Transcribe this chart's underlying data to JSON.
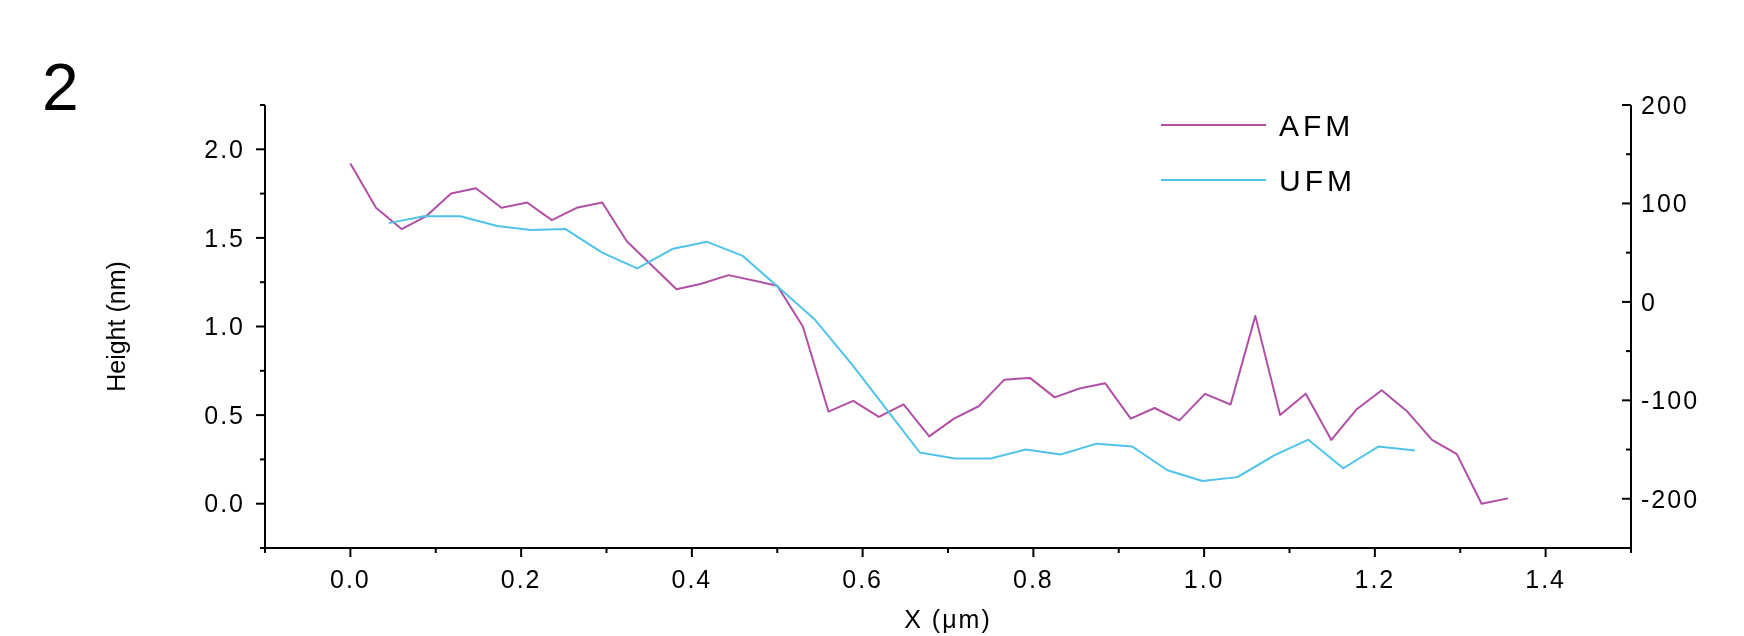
{
  "chart_data": {
    "type": "line",
    "title": "2",
    "xlabel": "X (μm)",
    "ylabel": "Height (nm)",
    "xlim": [
      -0.1,
      1.5
    ],
    "xticks": [
      {
        "value": -0.1,
        "label": null
      },
      {
        "value": 0,
        "label": "0.0"
      },
      {
        "value": 0.1,
        "label": null
      },
      0.2,
      {
        "value": 0.3,
        "label": null
      },
      0.4,
      {
        "value": 0.5,
        "label": null
      },
      0.6,
      {
        "value": 0.7,
        "label": null
      },
      0.8,
      {
        "value": 0.9,
        "label": null
      },
      {
        "value": 1,
        "label": "1.0"
      },
      {
        "value": 1.1,
        "label": null
      },
      1.2,
      {
        "value": 1.3,
        "label": null
      },
      1.4,
      {
        "value": 1.5,
        "label": null
      }
    ],
    "ylim": [
      -0.25,
      2.25
    ],
    "yticks": [
      {
        "value": -0.25,
        "label": null
      },
      {
        "value": 0,
        "label": "0.0"
      },
      {
        "value": 0.25,
        "label": null
      },
      0.5,
      {
        "value": 0.75,
        "label": null
      },
      {
        "value": 1,
        "label": "1.0"
      },
      {
        "value": 1.25,
        "label": null
      },
      1.5,
      {
        "value": 1.75,
        "label": null
      },
      {
        "value": 2,
        "label": "2.0"
      },
      {
        "value": 2.25,
        "label": null
      }
    ],
    "y2lim": [
      -250,
      200
    ],
    "y2ticks": [
      {
        "value": -250,
        "label": null
      },
      -200,
      {
        "value": -150,
        "label": null
      },
      -100,
      {
        "value": -50,
        "label": null
      },
      0,
      {
        "value": 50,
        "label": null
      },
      100,
      {
        "value": 150,
        "label": null
      },
      200
    ],
    "legend": "top right",
    "grid": false,
    "line_style": "solid",
    "marker": "none",
    "series": [
      {
        "name": "AFM",
        "color": "#b04fa5",
        "x": [
          0,
          0.03,
          0.06,
          0.088,
          0.118,
          0.147,
          0.177,
          0.207,
          0.236,
          0.265,
          0.295,
          0.324,
          0.382,
          0.41,
          0.443,
          0.5,
          0.53,
          0.56,
          0.589,
          0.619,
          0.648,
          0.678,
          0.707,
          0.736,
          0.766,
          0.796,
          0.825,
          0.854,
          0.884,
          0.914,
          0.942,
          0.971,
          1.001,
          1.031,
          1.06,
          1.089,
          1.119,
          1.149,
          1.178,
          1.208,
          1.238,
          1.267,
          1.296,
          1.325,
          1.356
        ],
        "values": [
          1.92,
          1.67,
          1.55,
          1.62,
          1.75,
          1.78,
          1.67,
          1.7,
          1.6,
          1.67,
          1.7,
          1.48,
          1.21,
          1.24,
          1.29,
          1.23,
          1.0,
          0.52,
          0.58,
          0.49,
          0.56,
          0.38,
          0.48,
          0.55,
          0.7,
          0.71,
          0.6,
          0.65,
          0.68,
          0.48,
          0.54,
          0.47,
          0.62,
          0.56,
          1.06,
          0.5,
          0.62,
          0.36,
          0.53,
          0.64,
          0.52,
          0.36,
          0.28,
          0.0,
          0.03
        ]
      },
      {
        "name": "UFM",
        "color": "#4fc3e8",
        "axis": "y2",
        "x": [
          0.045,
          0.086,
          0.129,
          0.172,
          0.211,
          0.252,
          0.295,
          0.336,
          0.378,
          0.418,
          0.459,
          0.5,
          0.544,
          0.587,
          0.627,
          0.667,
          0.708,
          0.75,
          0.791,
          0.832,
          0.874,
          0.916,
          0.957,
          0.998,
          1.039,
          1.082,
          1.122,
          1.163,
          1.204,
          1.247
        ],
        "values": [
          80,
          87,
          87,
          77,
          73,
          74,
          50,
          34,
          54,
          61,
          47,
          16,
          -18,
          -63,
          -108,
          -153,
          -159,
          -159,
          -150,
          -155,
          -144,
          -147,
          -171,
          -182,
          -178,
          -156,
          -140,
          -169,
          -147,
          -151
        ]
      }
    ]
  }
}
